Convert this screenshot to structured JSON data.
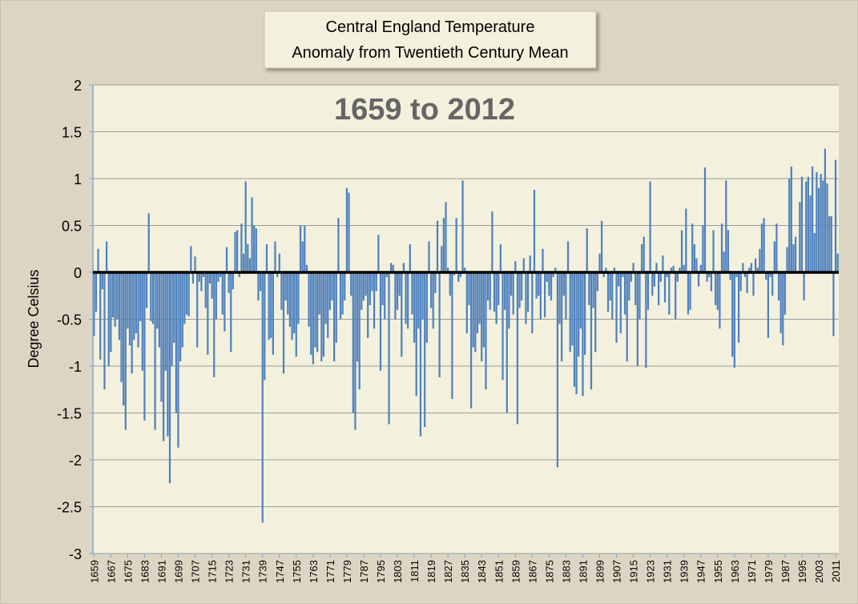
{
  "chart_data": {
    "type": "bar",
    "title": [
      "Central England Temperature",
      "Anomaly from Twentieth Century Mean"
    ],
    "annotation": "1659 to 2012",
    "ylabel": "Degree Celsius",
    "color": "#4f81bd",
    "grid": true,
    "xlim": [
      1658.5,
      2012.5
    ],
    "ylim": [
      -3,
      2
    ],
    "yticks": [
      -3,
      -2.5,
      -2,
      -1.5,
      -1,
      -0.5,
      0,
      0.5,
      1,
      1.5,
      2
    ],
    "xticks": [
      1659,
      1667,
      1675,
      1683,
      1691,
      1699,
      1707,
      1715,
      1723,
      1731,
      1739,
      1747,
      1755,
      1763,
      1771,
      1779,
      1787,
      1795,
      1803,
      1811,
      1819,
      1827,
      1835,
      1843,
      1851,
      1859,
      1867,
      1875,
      1883,
      1891,
      1899,
      1907,
      1915,
      1923,
      1931,
      1939,
      1947,
      1955,
      1963,
      1971,
      1979,
      1987,
      1995,
      2003,
      2011
    ],
    "x": [
      1659,
      1660,
      1661,
      1662,
      1663,
      1664,
      1665,
      1666,
      1667,
      1668,
      1669,
      1670,
      1671,
      1672,
      1673,
      1674,
      1675,
      1676,
      1677,
      1678,
      1679,
      1680,
      1681,
      1682,
      1683,
      1684,
      1685,
      1686,
      1687,
      1688,
      1689,
      1690,
      1691,
      1692,
      1693,
      1694,
      1695,
      1696,
      1697,
      1698,
      1699,
      1700,
      1701,
      1702,
      1703,
      1704,
      1705,
      1706,
      1707,
      1708,
      1709,
      1710,
      1711,
      1712,
      1713,
      1714,
      1715,
      1716,
      1717,
      1718,
      1719,
      1720,
      1721,
      1722,
      1723,
      1724,
      1725,
      1726,
      1727,
      1728,
      1729,
      1730,
      1731,
      1732,
      1733,
      1734,
      1735,
      1736,
      1737,
      1738,
      1739,
      1740,
      1741,
      1742,
      1743,
      1744,
      1745,
      1746,
      1747,
      1748,
      1749,
      1750,
      1751,
      1752,
      1753,
      1754,
      1755,
      1756,
      1757,
      1758,
      1759,
      1760,
      1761,
      1762,
      1763,
      1764,
      1765,
      1766,
      1767,
      1768,
      1769,
      1770,
      1771,
      1772,
      1773,
      1774,
      1775,
      1776,
      1777,
      1778,
      1779,
      1780,
      1781,
      1782,
      1783,
      1784,
      1785,
      1786,
      1787,
      1788,
      1789,
      1790,
      1791,
      1792,
      1793,
      1794,
      1795,
      1796,
      1797,
      1798,
      1799,
      1800,
      1801,
      1802,
      1803,
      1804,
      1805,
      1806,
      1807,
      1808,
      1809,
      1810,
      1811,
      1812,
      1813,
      1814,
      1815,
      1816,
      1817,
      1818,
      1819,
      1820,
      1821,
      1822,
      1823,
      1824,
      1825,
      1826,
      1827,
      1828,
      1829,
      1830,
      1831,
      1832,
      1833,
      1834,
      1835,
      1836,
      1837,
      1838,
      1839,
      1840,
      1841,
      1842,
      1843,
      1844,
      1845,
      1846,
      1847,
      1848,
      1849,
      1850,
      1851,
      1852,
      1853,
      1854,
      1855,
      1856,
      1857,
      1858,
      1859,
      1860,
      1861,
      1862,
      1863,
      1864,
      1865,
      1866,
      1867,
      1868,
      1869,
      1870,
      1871,
      1872,
      1873,
      1874,
      1875,
      1876,
      1877,
      1878,
      1879,
      1880,
      1881,
      1882,
      1883,
      1884,
      1885,
      1886,
      1887,
      1888,
      1889,
      1890,
      1891,
      1892,
      1893,
      1894,
      1895,
      1896,
      1897,
      1898,
      1899,
      1900,
      1901,
      1902,
      1903,
      1904,
      1905,
      1906,
      1907,
      1908,
      1909,
      1910,
      1911,
      1912,
      1913,
      1914,
      1915,
      1916,
      1917,
      1918,
      1919,
      1920,
      1921,
      1922,
      1923,
      1924,
      1925,
      1926,
      1927,
      1928,
      1929,
      1930,
      1931,
      1932,
      1933,
      1934,
      1935,
      1936,
      1937,
      1938,
      1939,
      1940,
      1941,
      1942,
      1943,
      1944,
      1945,
      1946,
      1947,
      1948,
      1949,
      1950,
      1951,
      1952,
      1953,
      1954,
      1955,
      1956,
      1957,
      1958,
      1959,
      1960,
      1961,
      1962,
      1963,
      1964,
      1965,
      1966,
      1967,
      1968,
      1969,
      1970,
      1971,
      1972,
      1973,
      1974,
      1975,
      1976,
      1977,
      1978,
      1979,
      1980,
      1981,
      1982,
      1983,
      1984,
      1985,
      1986,
      1987,
      1988,
      1989,
      1990,
      1991,
      1992,
      1993,
      1994,
      1995,
      1996,
      1997,
      1998,
      1999,
      2000,
      2001,
      2002,
      2003,
      2004,
      2005,
      2006,
      2007,
      2008,
      2009,
      2010,
      2011,
      2012
    ],
    "values": [
      -0.68,
      -0.42,
      0.25,
      -0.93,
      -0.18,
      -1.25,
      0.33,
      -1.0,
      -0.85,
      -0.48,
      -0.58,
      -0.5,
      -0.72,
      -1.17,
      -1.42,
      -1.68,
      -0.6,
      -0.78,
      -1.08,
      -0.72,
      -0.65,
      -0.8,
      -0.52,
      -1.05,
      -1.58,
      -0.38,
      0.63,
      -0.52,
      -0.55,
      -1.68,
      -0.6,
      -0.8,
      -1.38,
      -1.8,
      -1.05,
      -1.75,
      -2.25,
      -1.0,
      -0.75,
      -1.5,
      -1.87,
      -0.95,
      -0.8,
      -0.55,
      -0.45,
      -0.47,
      0.28,
      -0.12,
      0.17,
      -0.8,
      -0.1,
      -0.2,
      -0.05,
      -0.38,
      -0.88,
      -0.12,
      -0.28,
      -1.12,
      -0.5,
      -0.1,
      -0.05,
      -0.45,
      -0.63,
      0.27,
      -0.22,
      -0.85,
      -0.18,
      0.43,
      0.45,
      -0.05,
      0.52,
      0.2,
      0.97,
      0.3,
      0.15,
      0.8,
      0.5,
      0.47,
      -0.3,
      -0.2,
      -2.67,
      -1.15,
      0.3,
      -0.72,
      -0.7,
      -0.88,
      0.33,
      -0.05,
      0.2,
      -0.4,
      -1.08,
      -0.3,
      -0.45,
      -0.58,
      -0.72,
      -0.65,
      -0.9,
      -0.55,
      0.5,
      0.33,
      0.5,
      0.08,
      -0.58,
      -0.88,
      -0.98,
      -0.8,
      -0.85,
      -0.45,
      -0.95,
      -0.9,
      -0.55,
      -0.7,
      -0.4,
      -0.3,
      -0.95,
      -0.75,
      0.58,
      -0.5,
      -0.45,
      -0.3,
      0.9,
      0.85,
      -0.25,
      -1.5,
      -1.68,
      -0.95,
      -1.25,
      -0.4,
      -0.3,
      -0.25,
      -0.7,
      -0.35,
      -0.2,
      -0.6,
      -0.2,
      0.4,
      -1.05,
      -0.35,
      -0.5,
      -0.05,
      -1.62,
      0.1,
      0.08,
      -0.5,
      -0.4,
      -0.25,
      -0.9,
      0.1,
      -0.55,
      -0.6,
      0.3,
      -0.45,
      -0.75,
      -1.32,
      -0.6,
      -1.75,
      -0.5,
      -1.65,
      -0.75,
      0.33,
      -0.38,
      -0.6,
      -0.22,
      0.55,
      -1.12,
      0.28,
      0.58,
      0.75,
      0.05,
      -0.25,
      -1.35,
      -0.03,
      0.58,
      -0.1,
      -0.05,
      0.98,
      0.05,
      -0.65,
      -0.35,
      -1.45,
      -0.8,
      -0.85,
      -0.65,
      -0.55,
      -0.95,
      -0.8,
      -1.25,
      -0.3,
      -0.4,
      0.65,
      -0.42,
      -0.55,
      -0.35,
      0.3,
      -1.15,
      -0.4,
      -1.5,
      -0.6,
      -0.25,
      -0.45,
      0.12,
      -1.62,
      -0.38,
      -0.3,
      0.15,
      -0.55,
      -0.42,
      0.18,
      -0.65,
      0.88,
      -0.28,
      -0.25,
      -0.5,
      0.25,
      -0.48,
      -0.1,
      -0.25,
      -0.3,
      -0.05,
      0.05,
      -2.08,
      -0.55,
      -0.95,
      -0.25,
      -0.5,
      0.33,
      -0.85,
      -0.78,
      -1.22,
      -1.3,
      -0.9,
      -0.6,
      -1.32,
      -0.88,
      0.47,
      -0.35,
      -1.25,
      -0.38,
      -0.85,
      -0.2,
      0.2,
      0.55,
      -0.05,
      0.05,
      -0.42,
      -0.3,
      -0.5,
      0.05,
      -0.75,
      -0.15,
      -0.65,
      -0.05,
      -0.45,
      -0.95,
      -0.3,
      -0.1,
      0.1,
      -0.35,
      -1.0,
      -0.5,
      0.3,
      0.38,
      -1.02,
      -0.4,
      0.97,
      -0.25,
      -0.15,
      0.1,
      -0.35,
      -0.1,
      0.18,
      -0.32,
      -0.05,
      -0.45,
      0.05,
      0.07,
      -0.5,
      -0.1,
      0.05,
      0.45,
      0.08,
      0.68,
      -0.45,
      -0.4,
      0.52,
      0.3,
      0.15,
      -0.15,
      0.08,
      0.5,
      1.12,
      -0.1,
      -0.05,
      -0.2,
      0.45,
      -0.35,
      -0.4,
      -0.6,
      0.52,
      0.22,
      0.98,
      0.45,
      -0.08,
      -0.9,
      -1.02,
      -0.05,
      -0.75,
      -0.2,
      0.1,
      -0.05,
      -0.22,
      0.05,
      0.1,
      -0.25,
      0.15,
      0.05,
      0.25,
      0.52,
      0.58,
      -0.08,
      -0.7,
      -0.05,
      -0.25,
      0.33,
      0.52,
      -0.3,
      -0.65,
      -0.78,
      -0.45,
      0.27,
      1.0,
      1.13,
      0.3,
      0.38,
      0.0,
      0.75,
      1.02,
      -0.3,
      0.97,
      1.02,
      0.82,
      1.13,
      0.42,
      1.07,
      0.9,
      1.05,
      0.98,
      1.32,
      0.95,
      0.6,
      0.6,
      -0.68,
      1.2,
      0.2
    ]
  }
}
